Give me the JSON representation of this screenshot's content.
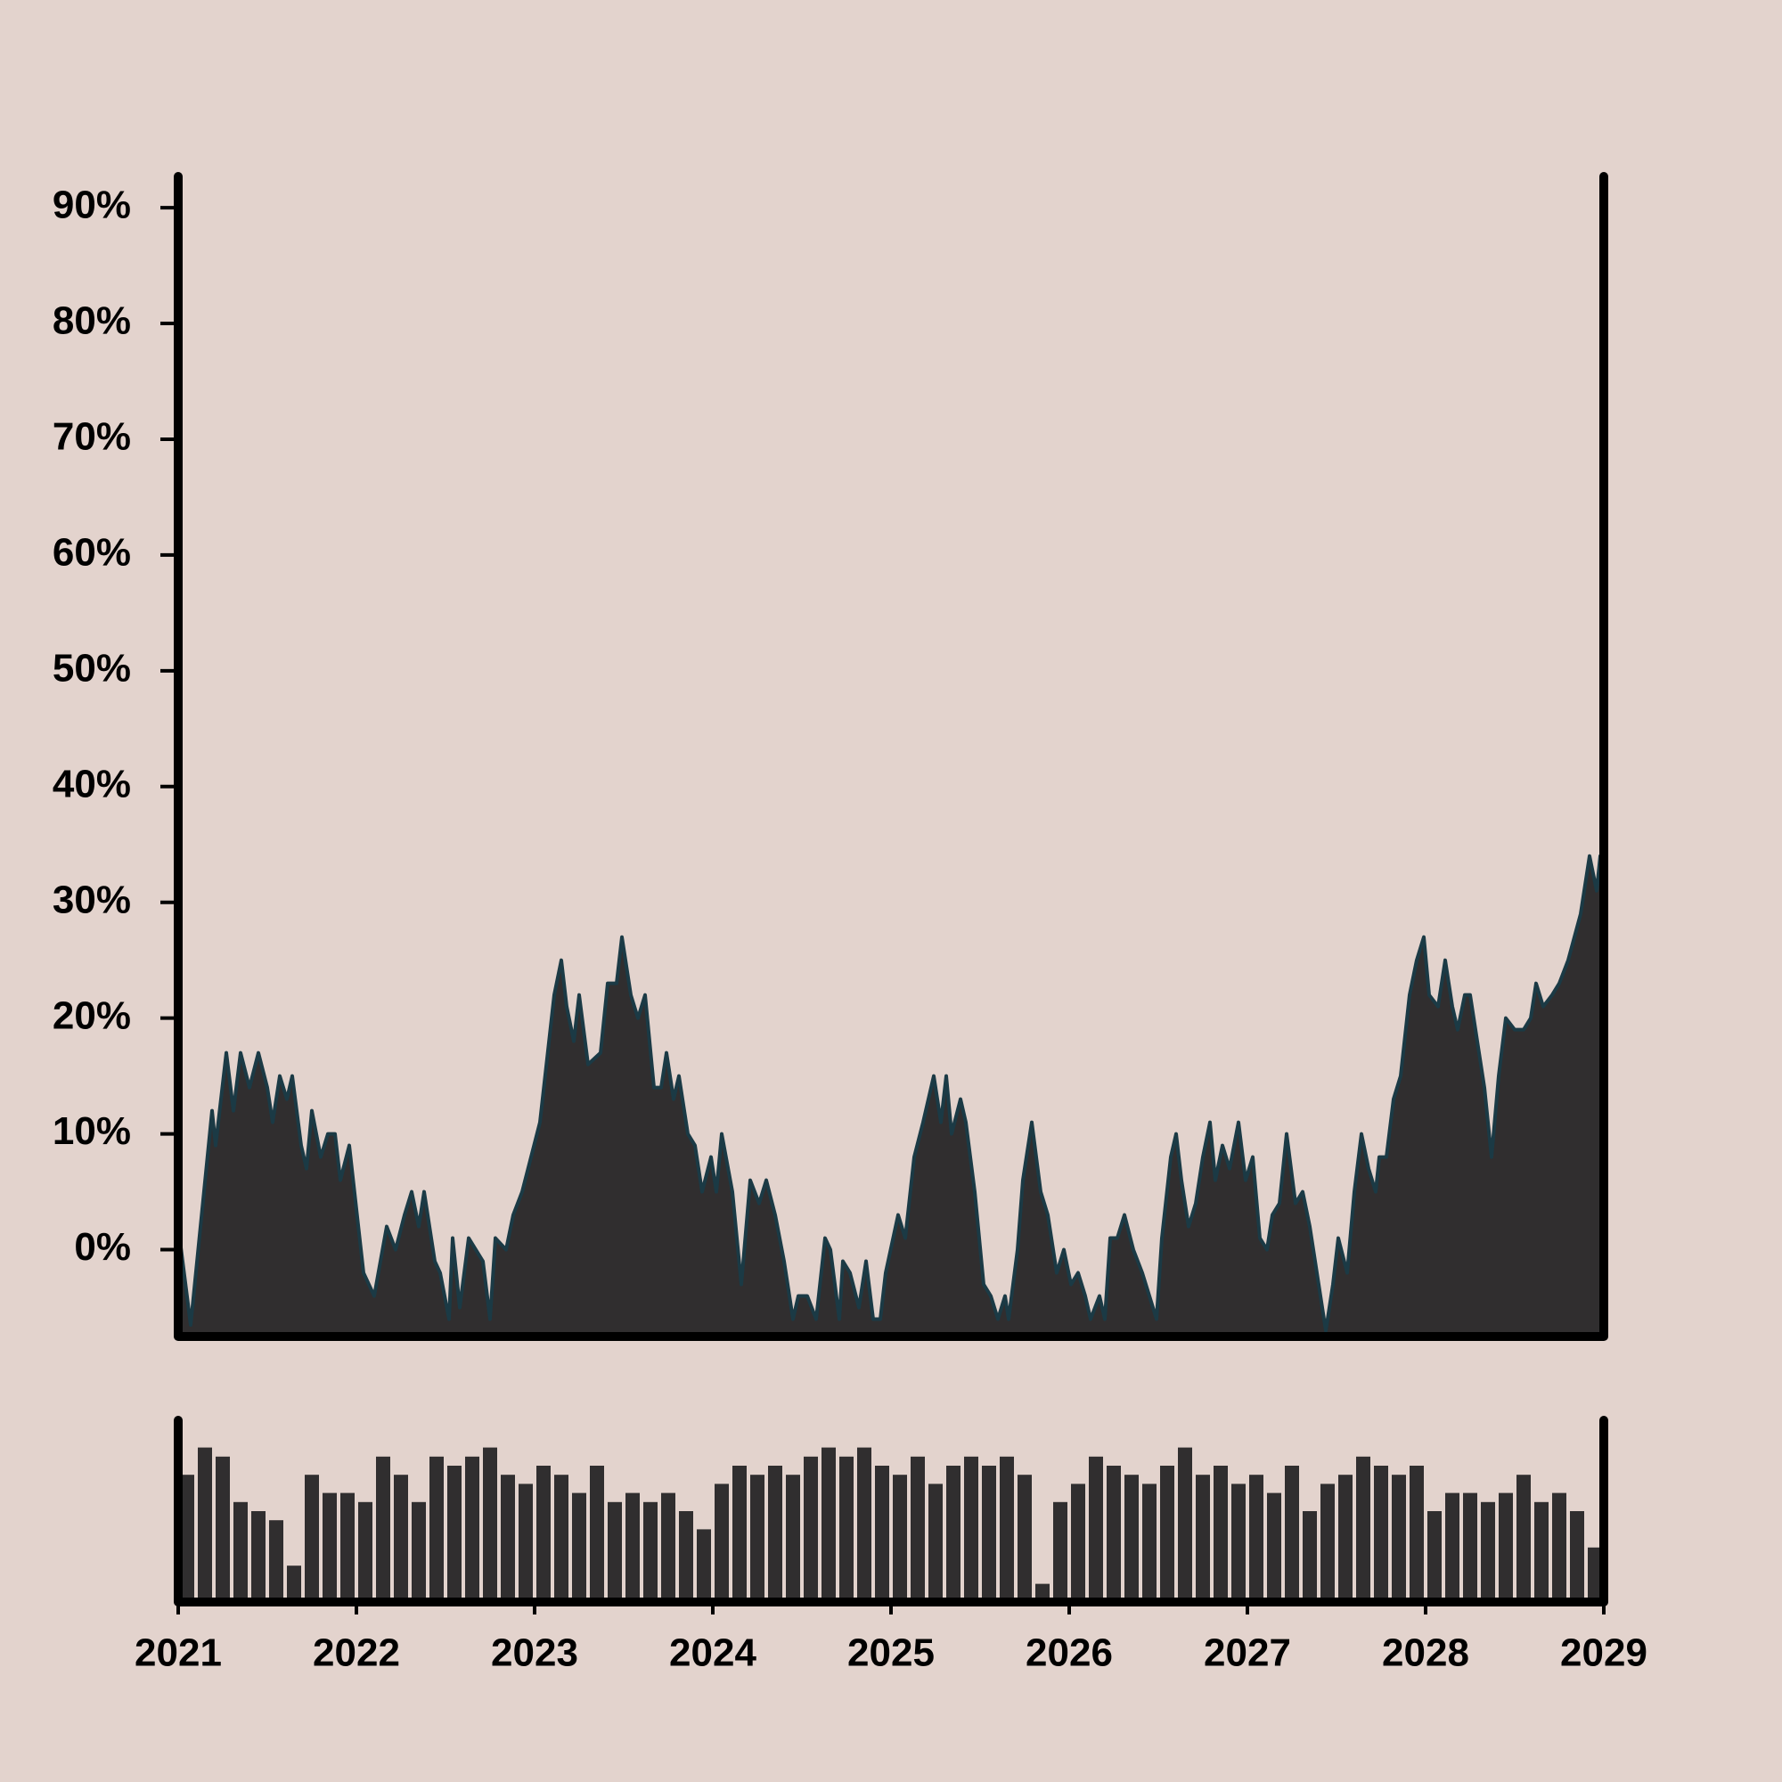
{
  "chart_data": [
    {
      "type": "area",
      "x": [
        2021.0,
        2021.07,
        2021.19,
        2021.21,
        2021.27,
        2021.31,
        2021.35,
        2021.4,
        2021.45,
        2021.5,
        2021.53,
        2021.57,
        2021.61,
        2021.64,
        2021.69,
        2021.72,
        2021.75,
        2021.8,
        2021.84,
        2021.88,
        2021.91,
        2021.96,
        2022.04,
        2022.1,
        2022.17,
        2022.22,
        2022.27,
        2022.31,
        2022.35,
        2022.38,
        2022.44,
        2022.47,
        2022.52,
        2022.54,
        2022.58,
        2022.63,
        2022.67,
        2022.71,
        2022.75,
        2022.78,
        2022.84,
        2022.88,
        2022.93,
        2022.98,
        2023.03,
        2023.11,
        2023.15,
        2023.18,
        2023.22,
        2023.25,
        2023.3,
        2023.37,
        2023.41,
        2023.46,
        2023.49,
        2023.54,
        2023.58,
        2023.62,
        2023.67,
        2023.71,
        2023.74,
        2023.78,
        2023.81,
        2023.86,
        2023.9,
        2023.94,
        2023.99,
        2024.02,
        2024.05,
        2024.11,
        2024.16,
        2024.21,
        2024.26,
        2024.3,
        2024.35,
        2024.4,
        2024.45,
        2024.48,
        2024.53,
        2024.58,
        2024.63,
        2024.66,
        2024.71,
        2024.73,
        2024.77,
        2024.82,
        2024.86,
        2024.9,
        2024.94,
        2024.97,
        2025.04,
        2025.08,
        2025.13,
        2025.18,
        2025.24,
        2025.28,
        2025.31,
        2025.34,
        2025.39,
        2025.42,
        2025.47,
        2025.52,
        2025.56,
        2025.6,
        2025.64,
        2025.66,
        2025.71,
        2025.74,
        2025.79,
        2025.84,
        2025.88,
        2025.93,
        2025.97,
        2026.01,
        2026.05,
        2026.09,
        2026.12,
        2026.17,
        2026.2,
        2026.23,
        2026.27,
        2026.31,
        2026.36,
        2026.41,
        2026.45,
        2026.49,
        2026.52,
        2026.57,
        2026.6,
        2026.63,
        2026.67,
        2026.71,
        2026.75,
        2026.79,
        2026.82,
        2026.86,
        2026.9,
        2026.95,
        2026.99,
        2027.03,
        2027.07,
        2027.11,
        2027.14,
        2027.18,
        2027.22,
        2027.27,
        2027.31,
        2027.35,
        2027.4,
        2027.44,
        2027.48,
        2027.51,
        2027.56,
        2027.6,
        2027.64,
        2027.68,
        2027.72,
        2027.74,
        2027.78,
        2027.82,
        2027.86,
        2027.91,
        2027.95,
        2027.99,
        2028.02,
        2028.07,
        2028.11,
        2028.15,
        2028.18,
        2028.22,
        2028.25,
        2028.29,
        2028.33,
        2028.37,
        2028.41,
        2028.45,
        2028.5,
        2028.55,
        2028.59,
        2028.62,
        2028.66,
        2028.71,
        2028.75,
        2028.8,
        2028.87,
        2028.92,
        2028.96,
        2028.98,
        2029.0
      ],
      "values": [
        2,
        -6.5,
        12,
        9,
        17,
        12,
        17,
        14,
        17,
        14,
        11,
        15,
        13,
        15,
        9,
        7,
        12,
        8,
        10,
        10,
        6,
        9,
        -2,
        -4,
        2,
        0,
        3,
        5,
        2,
        5,
        -1,
        -2,
        -6,
        1,
        -5,
        1,
        0,
        -1,
        -6,
        1,
        0,
        3,
        5,
        8,
        11,
        22,
        25,
        21,
        18,
        22,
        16,
        17,
        23,
        23,
        27,
        22,
        20,
        22,
        14,
        14,
        17,
        13,
        15,
        10,
        9,
        5,
        8,
        5,
        10,
        5,
        -3,
        6,
        4,
        6,
        3,
        -1,
        -6,
        -4,
        -4,
        -6,
        1,
        0,
        -6,
        -1,
        -2,
        -5,
        -1,
        -6,
        -6,
        -2,
        3,
        1,
        8,
        11,
        15,
        11,
        15,
        10,
        13,
        11,
        5,
        -3,
        -4,
        -6,
        -4,
        -6,
        0,
        6,
        11,
        5,
        3,
        -2,
        0,
        -3,
        -2,
        -4,
        -6,
        -4,
        -6,
        1,
        1,
        3,
        0,
        -2,
        -4,
        -6,
        1,
        8,
        10,
        6,
        2,
        4,
        8,
        11,
        6,
        9,
        7,
        11,
        6,
        8,
        1,
        0,
        3,
        4,
        10,
        4,
        5,
        2,
        -3,
        -7,
        -3,
        1,
        -2,
        5,
        10,
        7,
        5,
        8,
        8,
        13,
        15,
        22,
        25,
        27,
        22,
        21,
        25,
        21,
        19,
        22,
        22,
        18,
        14,
        8,
        15,
        20,
        19,
        19,
        20,
        23,
        21,
        22,
        23,
        25,
        29,
        34,
        31,
        34,
        33
      ],
      "color": "#302e2f",
      "line_color": "#1b3a45",
      "xlim": [
        2021,
        2029
      ],
      "ylim": [
        -7.5,
        92.7
      ],
      "yticks": [
        {
          "value": 0,
          "label": "0%"
        },
        {
          "value": 10,
          "label": "10%"
        },
        {
          "value": 20,
          "label": "20%"
        },
        {
          "value": 30,
          "label": "30%"
        },
        {
          "value": 40,
          "label": "40%"
        },
        {
          "value": 50,
          "label": "50%"
        },
        {
          "value": 60,
          "label": "60%"
        },
        {
          "value": 70,
          "label": "70%"
        },
        {
          "value": 80,
          "label": "80%"
        },
        {
          "value": 90,
          "label": "90%"
        }
      ]
    },
    {
      "type": "bar",
      "x": [
        2021.05,
        2021.15,
        2021.25,
        2021.35,
        2021.45,
        2021.55,
        2021.65,
        2021.75,
        2021.85,
        2021.95,
        2022.05,
        2022.15,
        2022.25,
        2022.35,
        2022.45,
        2022.55,
        2022.65,
        2022.75,
        2022.85,
        2022.95,
        2023.05,
        2023.15,
        2023.25,
        2023.35,
        2023.45,
        2023.55,
        2023.65,
        2023.75,
        2023.85,
        2023.95,
        2024.05,
        2024.15,
        2024.25,
        2024.35,
        2024.45,
        2024.55,
        2024.65,
        2024.75,
        2024.85,
        2024.95,
        2025.05,
        2025.15,
        2025.25,
        2025.35,
        2025.45,
        2025.55,
        2025.65,
        2025.75,
        2025.85,
        2025.95,
        2026.05,
        2026.15,
        2026.25,
        2026.35,
        2026.45,
        2026.55,
        2026.65,
        2026.75,
        2026.85,
        2026.95,
        2027.05,
        2027.15,
        2027.25,
        2027.35,
        2027.45,
        2027.55,
        2027.65,
        2027.75,
        2027.85,
        2027.95,
        2028.05,
        2028.15,
        2028.25,
        2028.35,
        2028.45,
        2028.55,
        2028.65,
        2028.75,
        2028.85,
        2028.95
      ],
      "values": [
        70,
        85,
        80,
        55,
        50,
        45,
        20,
        70,
        60,
        60,
        55,
        80,
        70,
        55,
        80,
        75,
        80,
        85,
        70,
        65,
        75,
        70,
        60,
        75,
        55,
        60,
        55,
        60,
        50,
        40,
        65,
        75,
        70,
        75,
        70,
        80,
        85,
        80,
        85,
        75,
        70,
        80,
        65,
        75,
        80,
        75,
        80,
        70,
        10,
        55,
        65,
        80,
        75,
        70,
        65,
        75,
        85,
        70,
        75,
        65,
        70,
        60,
        75,
        50,
        65,
        70,
        80,
        75,
        70,
        75,
        50,
        60,
        60,
        55,
        60,
        70,
        55,
        60,
        50,
        30
      ],
      "color": "#302e2f",
      "xlim": [
        2021,
        2029
      ],
      "ylim": [
        0,
        100
      ],
      "xticks": [
        2021,
        2022,
        2023,
        2024,
        2025,
        2026,
        2027,
        2028,
        2029
      ]
    }
  ]
}
